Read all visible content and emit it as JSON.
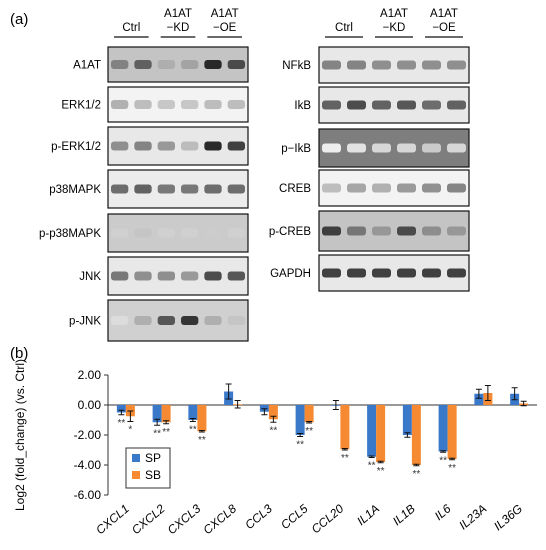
{
  "figure": {
    "panel_a": {
      "label": "(a)",
      "left_groups": [
        {
          "name": "Ctrl",
          "lines": [
            "Ctrl"
          ]
        },
        {
          "name": "A1AT-KD",
          "lines": [
            "A1AT",
            "−KD"
          ]
        },
        {
          "name": "A1AT-OE",
          "lines": [
            "A1AT",
            "−OE"
          ]
        }
      ],
      "right_groups": [
        {
          "name": "Ctrl",
          "lines": [
            "Ctrl"
          ]
        },
        {
          "name": "A1AT-KD",
          "lines": [
            "A1AT",
            "−KD"
          ]
        },
        {
          "name": "A1AT-OE",
          "lines": [
            "A1AT",
            "−OE"
          ]
        }
      ],
      "left_blots": [
        {
          "label": "A1AT",
          "bands": [
            0.55,
            0.7,
            0.35,
            0.4,
            0.95,
            0.8
          ],
          "bg": 0.25
        },
        {
          "label": "ERK1/2",
          "bands": [
            0.35,
            0.3,
            0.25,
            0.25,
            0.3,
            0.3
          ],
          "bg": 0.05
        },
        {
          "label": "p-ERK1/2",
          "bands": [
            0.5,
            0.55,
            0.45,
            0.3,
            0.95,
            0.85
          ],
          "bg": 0.1
        },
        {
          "label": "p38MAPK",
          "bands": [
            0.65,
            0.7,
            0.6,
            0.6,
            0.65,
            0.65
          ],
          "bg": 0.08
        },
        {
          "label": "p-p38MAPK",
          "bands": [
            0.2,
            0.25,
            0.2,
            0.2,
            0.22,
            0.2
          ],
          "bg": 0.22
        },
        {
          "label": "JNK",
          "bands": [
            0.6,
            0.5,
            0.5,
            0.45,
            0.8,
            0.75
          ],
          "bg": 0.1
        },
        {
          "label": "p-JNK",
          "bands": [
            0.15,
            0.35,
            0.75,
            0.9,
            0.35,
            0.25
          ],
          "bg": 0.2
        }
      ],
      "right_blots": [
        {
          "label": "NFkB",
          "bands": [
            0.55,
            0.55,
            0.5,
            0.5,
            0.5,
            0.5
          ],
          "bg": 0.1
        },
        {
          "label": "IkB",
          "bands": [
            0.7,
            0.8,
            0.7,
            0.75,
            0.65,
            0.7
          ],
          "bg": 0.1
        },
        {
          "label": "p−IkB",
          "bands": [
            0.05,
            0.1,
            0.15,
            0.15,
            0.2,
            0.15
          ],
          "bg": 0.55
        },
        {
          "label": "CREB",
          "bands": [
            0.3,
            0.4,
            0.35,
            0.45,
            0.5,
            0.55
          ],
          "bg": 0.05
        },
        {
          "label": "p-CREB",
          "bands": [
            0.85,
            0.6,
            0.45,
            0.8,
            0.5,
            0.45
          ],
          "bg": 0.25
        },
        {
          "label": "GAPDH",
          "bands": [
            0.85,
            0.85,
            0.85,
            0.85,
            0.85,
            0.85
          ],
          "bg": 0.1
        }
      ]
    },
    "panel_b": {
      "label": "(b)",
      "legend": [
        {
          "name": "SP",
          "color": "#3a78c9"
        },
        {
          "name": "SB",
          "color": "#f58a32"
        }
      ]
    }
  },
  "chart_data": {
    "type": "bar",
    "ylabel": "Log2 (fold_change) (vs. Ctrl)",
    "ylim": [
      -6.0,
      2.0
    ],
    "yticks": [
      "2.00",
      "0.00",
      "-2.00",
      "-4.00",
      "-6.00"
    ],
    "ytick_values": [
      2,
      0,
      -2,
      -4,
      -6
    ],
    "legend_position": "bottom-left",
    "grid": false,
    "categories": [
      "CXCL1",
      "CXCL2",
      "CXCL3",
      "CXCL8",
      "CCL3",
      "CCL5",
      "CCL20",
      "IL1A",
      "IL1B",
      "IL6",
      "IL23A",
      "IL36G"
    ],
    "series": [
      {
        "name": "SP",
        "color": "#3a78c9",
        "values": [
          -0.5,
          -1.15,
          -1.0,
          0.9,
          -0.45,
          -2.0,
          0.0,
          -3.45,
          -2.0,
          -3.1,
          0.75,
          0.75
        ],
        "errors": [
          0.15,
          0.2,
          0.1,
          0.5,
          0.2,
          0.1,
          0.3,
          0.05,
          0.15,
          0.05,
          0.3,
          0.4
        ],
        "sig": [
          "**",
          "**",
          "**",
          "",
          "",
          "**",
          "",
          "**",
          "",
          "**",
          "",
          ""
        ]
      },
      {
        "name": "SB",
        "color": "#f58a32",
        "values": [
          -0.75,
          -1.15,
          -1.75,
          0.05,
          -0.95,
          -1.15,
          -2.95,
          -3.8,
          -4.0,
          -3.6,
          0.8,
          0.1
        ],
        "errors": [
          0.35,
          0.1,
          0.05,
          0.25,
          0.2,
          0.05,
          0.05,
          0.05,
          0.05,
          0.05,
          0.5,
          0.15
        ],
        "sig": [
          "*",
          "**",
          "**",
          "",
          "**",
          "**",
          "**",
          "**",
          "**",
          "**",
          "",
          ""
        ]
      }
    ]
  }
}
